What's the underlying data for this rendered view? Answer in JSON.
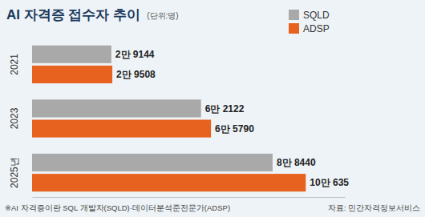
{
  "chart_data": {
    "type": "bar",
    "orientation": "horizontal",
    "title": "AI 자격증 접수자 추이",
    "subtitle": "(단위:명)",
    "categories": [
      "2021",
      "2023",
      "2025년"
    ],
    "series": [
      {
        "name": "SQLD",
        "color": "#a9a9a9",
        "values": [
          29144,
          62122,
          88440
        ],
        "value_labels": [
          "2만 9144",
          "6만 2122",
          "8만 8440"
        ]
      },
      {
        "name": "ADSP",
        "color": "#e8621f",
        "values": [
          29508,
          65790,
          100635
        ],
        "value_labels": [
          "2만 9508",
          "6만 5790",
          "10만 635"
        ]
      }
    ],
    "xlim": [
      0,
      115000
    ],
    "legend": "top-right",
    "data_labels": true,
    "tick_labels": "y",
    "grid": false,
    "footnote": "※AI 자격증이란 SQL 개발자(SQLD)·데이터분석준전문가(ADSP)",
    "source": "자료: 민간자격정보서비스"
  }
}
